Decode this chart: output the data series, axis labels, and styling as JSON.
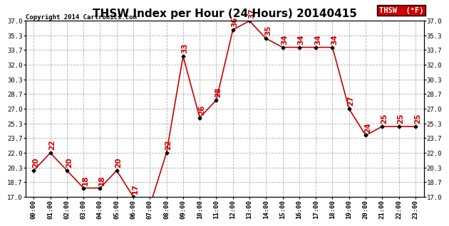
{
  "title": "THSW Index per Hour (24 Hours) 20140415",
  "copyright": "Copyright 2014 Cartronics.com",
  "legend_label": "THSW  (°F)",
  "hours": [
    "00:00",
    "01:00",
    "02:00",
    "03:00",
    "04:00",
    "05:00",
    "06:00",
    "07:00",
    "08:00",
    "09:00",
    "10:00",
    "11:00",
    "12:00",
    "13:00",
    "14:00",
    "15:00",
    "16:00",
    "17:00",
    "18:00",
    "19:00",
    "20:00",
    "21:00",
    "22:00",
    "23:00"
  ],
  "values": [
    20,
    22,
    20,
    18,
    18,
    20,
    17,
    16,
    22,
    33,
    26,
    28,
    36,
    37,
    35,
    34,
    34,
    34,
    34,
    27,
    24,
    25,
    25,
    25
  ],
  "ylim": [
    17.0,
    37.0
  ],
  "yticks": [
    17.0,
    18.7,
    20.3,
    22.0,
    23.7,
    25.3,
    27.0,
    28.7,
    30.3,
    32.0,
    33.7,
    35.3,
    37.0
  ],
  "line_color": "#cc0000",
  "marker_color": "#000000",
  "background_color": "#ffffff",
  "grid_color": "#b0b0b0",
  "title_fontsize": 11,
  "label_fontsize": 6.5,
  "annotation_fontsize": 7.5,
  "legend_bg": "#cc0000",
  "legend_text_color": "#ffffff"
}
